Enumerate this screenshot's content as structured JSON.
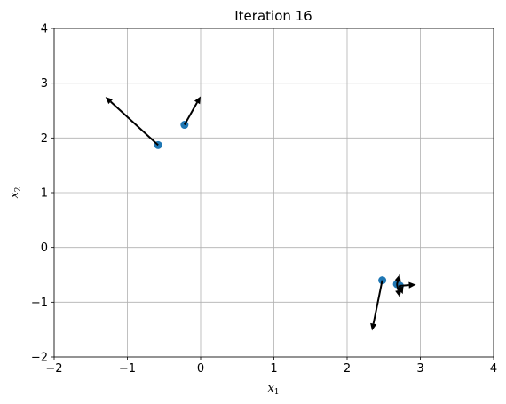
{
  "chart_data": {
    "type": "scatter",
    "title": "Iteration 16",
    "xlabel": "x",
    "xlabel_sub": "1",
    "ylabel": "x",
    "ylabel_sub": "2",
    "xlim": [
      -2,
      4
    ],
    "ylim": [
      -2,
      4
    ],
    "xticks": [
      -2,
      -1,
      0,
      1,
      2,
      3,
      4
    ],
    "yticks": [
      -2,
      -1,
      0,
      1,
      2,
      3,
      4
    ],
    "xtick_labels": [
      "−2",
      "−1",
      "0",
      "1",
      "2",
      "3",
      "4"
    ],
    "ytick_labels": [
      "−2",
      "−1",
      "0",
      "1",
      "2",
      "3",
      "4"
    ],
    "grid": true,
    "point_color": "#1f77b4",
    "arrow_color": "#000000",
    "points": [
      {
        "x": -0.58,
        "y": 1.87
      },
      {
        "x": -0.22,
        "y": 2.24
      },
      {
        "x": 2.48,
        "y": -0.6
      },
      {
        "x": 2.68,
        "y": -0.67
      },
      {
        "x": 2.72,
        "y": -0.7
      }
    ],
    "arrows": [
      {
        "x": -0.58,
        "y": 1.87,
        "dx": -0.72,
        "dy": 0.88
      },
      {
        "x": -0.22,
        "y": 2.24,
        "dx": 0.22,
        "dy": 0.52
      },
      {
        "x": 2.48,
        "y": -0.6,
        "dx": -0.14,
        "dy": -0.92
      },
      {
        "x": 2.68,
        "y": -0.67,
        "dx": 0.04,
        "dy": 0.18
      },
      {
        "x": 2.68,
        "y": -0.67,
        "dx": 0.04,
        "dy": -0.24
      },
      {
        "x": 2.72,
        "y": -0.7,
        "dx": 0.22,
        "dy": 0.02
      },
      {
        "x": 2.72,
        "y": -0.7,
        "dx": 0.04,
        "dy": -0.15
      }
    ]
  }
}
